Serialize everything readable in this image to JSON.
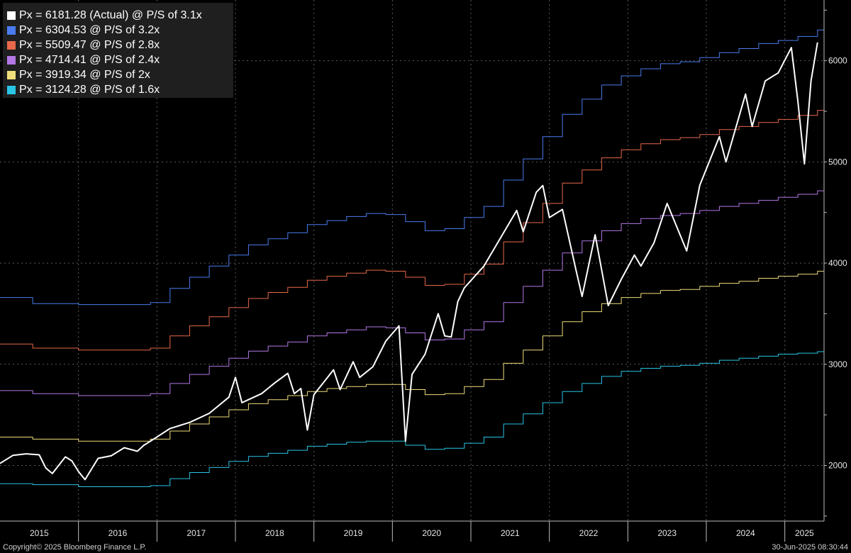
{
  "chart_data": {
    "type": "line",
    "title": "",
    "xlabel": "",
    "ylabel": "",
    "x_range": [
      "2015-01",
      "2025-07"
    ],
    "ylim": [
      1450,
      6600
    ],
    "y_ticks": [
      2000,
      3000,
      4000,
      5000,
      6000
    ],
    "x_tick_labels": [
      "2015",
      "2016",
      "2017",
      "2018",
      "2019",
      "2020",
      "2021",
      "2022",
      "2023",
      "2024",
      "2025"
    ],
    "grid": true,
    "y_axis_position": "right",
    "legend_position": "top-left",
    "series": [
      {
        "name": "Px = 6181.28 (Actual) @ P/S of 3.1x",
        "color": "#ffffff",
        "points": [
          [
            "2015-01",
            2020
          ],
          [
            "2015-03",
            2100
          ],
          [
            "2015-05",
            2115
          ],
          [
            "2015-07",
            2105
          ],
          [
            "2015-08",
            1975
          ],
          [
            "2015-09",
            1920
          ],
          [
            "2015-11",
            2085
          ],
          [
            "2015-12",
            2045
          ],
          [
            "2016-01",
            1940
          ],
          [
            "2016-02",
            1860
          ],
          [
            "2016-04",
            2070
          ],
          [
            "2016-06",
            2095
          ],
          [
            "2016-08",
            2175
          ],
          [
            "2016-10",
            2140
          ],
          [
            "2016-11",
            2200
          ],
          [
            "2016-12",
            2240
          ],
          [
            "2017-03",
            2365
          ],
          [
            "2017-06",
            2425
          ],
          [
            "2017-09",
            2515
          ],
          [
            "2017-12",
            2675
          ],
          [
            "2018-01",
            2870
          ],
          [
            "2018-02",
            2620
          ],
          [
            "2018-03",
            2650
          ],
          [
            "2018-05",
            2710
          ],
          [
            "2018-07",
            2815
          ],
          [
            "2018-09",
            2910
          ],
          [
            "2018-10",
            2710
          ],
          [
            "2018-11",
            2760
          ],
          [
            "2018-12",
            2350
          ],
          [
            "2019-01",
            2700
          ],
          [
            "2019-04",
            2945
          ],
          [
            "2019-05",
            2750
          ],
          [
            "2019-07",
            3025
          ],
          [
            "2019-08",
            2870
          ],
          [
            "2019-10",
            2975
          ],
          [
            "2019-12",
            3230
          ],
          [
            "2020-02",
            3380
          ],
          [
            "2020-03",
            2240
          ],
          [
            "2020-04",
            2900
          ],
          [
            "2020-06",
            3100
          ],
          [
            "2020-08",
            3500
          ],
          [
            "2020-09",
            3280
          ],
          [
            "2020-10",
            3270
          ],
          [
            "2020-11",
            3620
          ],
          [
            "2020-12",
            3756
          ],
          [
            "2021-03",
            3970
          ],
          [
            "2021-06",
            4300
          ],
          [
            "2021-08",
            4520
          ],
          [
            "2021-09",
            4310
          ],
          [
            "2021-11",
            4700
          ],
          [
            "2021-12",
            4766
          ],
          [
            "2022-01",
            4450
          ],
          [
            "2022-03",
            4530
          ],
          [
            "2022-05",
            3950
          ],
          [
            "2022-06",
            3670
          ],
          [
            "2022-08",
            4280
          ],
          [
            "2022-10",
            3580
          ],
          [
            "2022-12",
            3840
          ],
          [
            "2023-02",
            4080
          ],
          [
            "2023-03",
            3970
          ],
          [
            "2023-05",
            4200
          ],
          [
            "2023-07",
            4590
          ],
          [
            "2023-10",
            4120
          ],
          [
            "2023-12",
            4770
          ],
          [
            "2024-03",
            5250
          ],
          [
            "2024-04",
            5000
          ],
          [
            "2024-07",
            5670
          ],
          [
            "2024-08",
            5350
          ],
          [
            "2024-10",
            5800
          ],
          [
            "2024-12",
            5880
          ],
          [
            "2025-02",
            6130
          ],
          [
            "2025-03",
            5600
          ],
          [
            "2025-04",
            4980
          ],
          [
            "2025-05",
            5800
          ],
          [
            "2025-06",
            6181.28
          ]
        ]
      },
      {
        "name": "Px = 6304.53 @ P/S of 3.2x",
        "color": "#4a7cf0",
        "step": true,
        "points": [
          [
            "2015-01",
            3660
          ],
          [
            "2015-06",
            3600
          ],
          [
            "2016-01",
            3590
          ],
          [
            "2016-06",
            3590
          ],
          [
            "2016-12",
            3610
          ],
          [
            "2017-03",
            3750
          ],
          [
            "2017-06",
            3860
          ],
          [
            "2017-09",
            3970
          ],
          [
            "2017-12",
            4080
          ],
          [
            "2018-03",
            4180
          ],
          [
            "2018-06",
            4240
          ],
          [
            "2018-09",
            4300
          ],
          [
            "2018-12",
            4380
          ],
          [
            "2019-03",
            4420
          ],
          [
            "2019-06",
            4460
          ],
          [
            "2019-09",
            4490
          ],
          [
            "2019-12",
            4480
          ],
          [
            "2020-03",
            4410
          ],
          [
            "2020-06",
            4320
          ],
          [
            "2020-09",
            4340
          ],
          [
            "2020-12",
            4450
          ],
          [
            "2021-03",
            4560
          ],
          [
            "2021-06",
            4820
          ],
          [
            "2021-09",
            5030
          ],
          [
            "2021-12",
            5250
          ],
          [
            "2022-03",
            5470
          ],
          [
            "2022-06",
            5620
          ],
          [
            "2022-09",
            5760
          ],
          [
            "2022-12",
            5850
          ],
          [
            "2023-03",
            5920
          ],
          [
            "2023-06",
            5970
          ],
          [
            "2023-09",
            5990
          ],
          [
            "2023-12",
            6030
          ],
          [
            "2024-03",
            6080
          ],
          [
            "2024-06",
            6120
          ],
          [
            "2024-09",
            6170
          ],
          [
            "2024-12",
            6200
          ],
          [
            "2025-03",
            6240
          ],
          [
            "2025-06",
            6304.53
          ]
        ]
      },
      {
        "name": "Px = 5509.47 @ P/S of 2.8x",
        "color": "#e8684a",
        "step": true,
        "points": [
          [
            "2015-01",
            3200
          ],
          [
            "2015-06",
            3160
          ],
          [
            "2016-01",
            3140
          ],
          [
            "2016-06",
            3140
          ],
          [
            "2016-12",
            3160
          ],
          [
            "2017-03",
            3280
          ],
          [
            "2017-06",
            3380
          ],
          [
            "2017-09",
            3470
          ],
          [
            "2017-12",
            3560
          ],
          [
            "2018-03",
            3650
          ],
          [
            "2018-06",
            3710
          ],
          [
            "2018-09",
            3760
          ],
          [
            "2018-12",
            3830
          ],
          [
            "2019-03",
            3870
          ],
          [
            "2019-06",
            3900
          ],
          [
            "2019-09",
            3930
          ],
          [
            "2019-12",
            3920
          ],
          [
            "2020-03",
            3860
          ],
          [
            "2020-06",
            3780
          ],
          [
            "2020-09",
            3790
          ],
          [
            "2020-12",
            3890
          ],
          [
            "2021-03",
            3990
          ],
          [
            "2021-06",
            4210
          ],
          [
            "2021-09",
            4400
          ],
          [
            "2021-12",
            4590
          ],
          [
            "2022-03",
            4790
          ],
          [
            "2022-06",
            4920
          ],
          [
            "2022-09",
            5040
          ],
          [
            "2022-12",
            5120
          ],
          [
            "2023-03",
            5180
          ],
          [
            "2023-06",
            5220
          ],
          [
            "2023-09",
            5240
          ],
          [
            "2023-12",
            5270
          ],
          [
            "2024-03",
            5320
          ],
          [
            "2024-06",
            5350
          ],
          [
            "2024-09",
            5390
          ],
          [
            "2024-12",
            5420
          ],
          [
            "2025-03",
            5460
          ],
          [
            "2025-06",
            5509.47
          ]
        ]
      },
      {
        "name": "Px = 4714.41 @ P/S of 2.4x",
        "color": "#b377e6",
        "step": true,
        "points": [
          [
            "2015-01",
            2740
          ],
          [
            "2015-06",
            2710
          ],
          [
            "2016-01",
            2690
          ],
          [
            "2016-06",
            2690
          ],
          [
            "2016-12",
            2710
          ],
          [
            "2017-03",
            2810
          ],
          [
            "2017-06",
            2900
          ],
          [
            "2017-09",
            2980
          ],
          [
            "2017-12",
            3060
          ],
          [
            "2018-03",
            3130
          ],
          [
            "2018-06",
            3180
          ],
          [
            "2018-09",
            3220
          ],
          [
            "2018-12",
            3280
          ],
          [
            "2019-03",
            3310
          ],
          [
            "2019-06",
            3340
          ],
          [
            "2019-09",
            3370
          ],
          [
            "2019-12",
            3360
          ],
          [
            "2020-03",
            3310
          ],
          [
            "2020-06",
            3240
          ],
          [
            "2020-09",
            3250
          ],
          [
            "2020-12",
            3340
          ],
          [
            "2021-03",
            3420
          ],
          [
            "2021-06",
            3610
          ],
          [
            "2021-09",
            3770
          ],
          [
            "2021-12",
            3930
          ],
          [
            "2022-03",
            4100
          ],
          [
            "2022-06",
            4220
          ],
          [
            "2022-09",
            4320
          ],
          [
            "2022-12",
            4390
          ],
          [
            "2023-03",
            4440
          ],
          [
            "2023-06",
            4470
          ],
          [
            "2023-09",
            4490
          ],
          [
            "2023-12",
            4520
          ],
          [
            "2024-03",
            4560
          ],
          [
            "2024-06",
            4590
          ],
          [
            "2024-09",
            4620
          ],
          [
            "2024-12",
            4650
          ],
          [
            "2025-03",
            4680
          ],
          [
            "2025-06",
            4714.41
          ]
        ]
      },
      {
        "name": "Px = 3919.34 @ P/S of 2x",
        "color": "#f0de7a",
        "step": true,
        "points": [
          [
            "2015-01",
            2280
          ],
          [
            "2015-06",
            2260
          ],
          [
            "2016-01",
            2240
          ],
          [
            "2016-06",
            2240
          ],
          [
            "2016-12",
            2260
          ],
          [
            "2017-03",
            2340
          ],
          [
            "2017-06",
            2410
          ],
          [
            "2017-09",
            2480
          ],
          [
            "2017-12",
            2550
          ],
          [
            "2018-03",
            2610
          ],
          [
            "2018-06",
            2650
          ],
          [
            "2018-09",
            2690
          ],
          [
            "2018-12",
            2730
          ],
          [
            "2019-03",
            2760
          ],
          [
            "2019-06",
            2780
          ],
          [
            "2019-09",
            2800
          ],
          [
            "2019-12",
            2800
          ],
          [
            "2020-03",
            2750
          ],
          [
            "2020-06",
            2700
          ],
          [
            "2020-09",
            2710
          ],
          [
            "2020-12",
            2780
          ],
          [
            "2021-03",
            2850
          ],
          [
            "2021-06",
            3010
          ],
          [
            "2021-09",
            3140
          ],
          [
            "2021-12",
            3280
          ],
          [
            "2022-03",
            3420
          ],
          [
            "2022-06",
            3520
          ],
          [
            "2022-09",
            3600
          ],
          [
            "2022-12",
            3660
          ],
          [
            "2023-03",
            3700
          ],
          [
            "2023-06",
            3730
          ],
          [
            "2023-09",
            3740
          ],
          [
            "2023-12",
            3770
          ],
          [
            "2024-03",
            3800
          ],
          [
            "2024-06",
            3820
          ],
          [
            "2024-09",
            3850
          ],
          [
            "2024-12",
            3870
          ],
          [
            "2025-03",
            3890
          ],
          [
            "2025-06",
            3919.34
          ]
        ]
      },
      {
        "name": "Px = 3124.28 @ P/S of 1.6x",
        "color": "#29c5e6",
        "step": true,
        "points": [
          [
            "2015-01",
            1820
          ],
          [
            "2015-06",
            1810
          ],
          [
            "2016-01",
            1790
          ],
          [
            "2016-06",
            1790
          ],
          [
            "2016-12",
            1800
          ],
          [
            "2017-03",
            1870
          ],
          [
            "2017-06",
            1930
          ],
          [
            "2017-09",
            1980
          ],
          [
            "2017-12",
            2040
          ],
          [
            "2018-03",
            2090
          ],
          [
            "2018-06",
            2120
          ],
          [
            "2018-09",
            2150
          ],
          [
            "2018-12",
            2190
          ],
          [
            "2019-03",
            2210
          ],
          [
            "2019-06",
            2230
          ],
          [
            "2019-09",
            2240
          ],
          [
            "2019-12",
            2240
          ],
          [
            "2020-03",
            2200
          ],
          [
            "2020-06",
            2160
          ],
          [
            "2020-09",
            2170
          ],
          [
            "2020-12",
            2220
          ],
          [
            "2021-03",
            2280
          ],
          [
            "2021-06",
            2410
          ],
          [
            "2021-09",
            2510
          ],
          [
            "2021-12",
            2620
          ],
          [
            "2022-03",
            2730
          ],
          [
            "2022-06",
            2810
          ],
          [
            "2022-09",
            2880
          ],
          [
            "2022-12",
            2930
          ],
          [
            "2023-03",
            2960
          ],
          [
            "2023-06",
            2980
          ],
          [
            "2023-09",
            2990
          ],
          [
            "2023-12",
            3010
          ],
          [
            "2024-03",
            3040
          ],
          [
            "2024-06",
            3060
          ],
          [
            "2024-09",
            3080
          ],
          [
            "2024-12",
            3100
          ],
          [
            "2025-03",
            3110
          ],
          [
            "2025-06",
            3124.28
          ]
        ]
      }
    ]
  },
  "footer": {
    "copyright": "Copyright© 2025 Bloomberg Finance L.P.",
    "timestamp": "30-Jun-2025 08:30:44"
  }
}
